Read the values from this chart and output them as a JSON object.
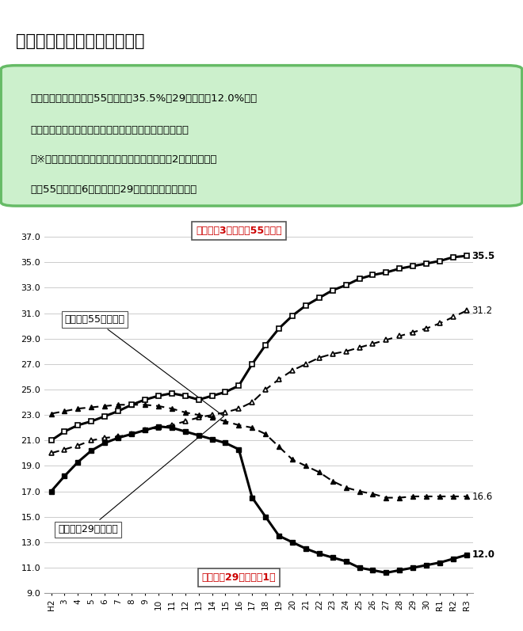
{
  "title": "建設業就業者の高齢化の進行",
  "note_line1": "〇　建設業就業者は、55歳以上が35.5%、29歳以下が12.0%と高",
  "note_line2": "　　齢化が進行し、次世代への技術承継が大きな課題。",
  "note_line3": "　※実数ベースでは、建設業就業者数のうち令和2年と比較して",
  "note_line4": "　　55歳以上が6万人減少（29歳以下は増減なし）。",
  "x_labels": [
    "H2",
    "3",
    "4",
    "5",
    "6",
    "7",
    "8",
    "9",
    "10",
    "11",
    "12",
    "13",
    "14",
    "15",
    "16",
    "17",
    "18",
    "19",
    "20",
    "21",
    "22",
    "23",
    "24",
    "25",
    "26",
    "27",
    "28",
    "29",
    "30",
    "R1",
    "R2",
    "R3"
  ],
  "ylim": [
    9.0,
    38.5
  ],
  "yticks": [
    9.0,
    11.0,
    13.0,
    15.0,
    17.0,
    19.0,
    21.0,
    23.0,
    25.0,
    27.0,
    29.0,
    31.0,
    33.0,
    35.0,
    37.0
  ],
  "construction_55": [
    21.0,
    21.7,
    22.2,
    22.5,
    22.9,
    23.3,
    23.8,
    24.2,
    24.5,
    24.7,
    24.5,
    24.2,
    24.5,
    24.8,
    25.3,
    27.0,
    28.5,
    29.8,
    30.8,
    31.6,
    32.2,
    32.8,
    33.2,
    33.7,
    34.0,
    34.2,
    34.5,
    34.7,
    34.9,
    35.1,
    35.4,
    35.5
  ],
  "all_industry_55": [
    20.0,
    20.3,
    20.6,
    21.0,
    21.2,
    21.3,
    21.5,
    21.8,
    22.0,
    22.2,
    22.5,
    22.8,
    23.0,
    23.2,
    23.5,
    24.0,
    25.0,
    25.8,
    26.5,
    27.0,
    27.5,
    27.8,
    28.0,
    28.3,
    28.6,
    28.9,
    29.2,
    29.5,
    29.8,
    30.2,
    30.7,
    31.2
  ],
  "construction_29": [
    17.0,
    18.2,
    19.3,
    20.2,
    20.8,
    21.2,
    21.5,
    21.8,
    22.1,
    22.0,
    21.7,
    21.4,
    21.1,
    20.8,
    20.3,
    16.5,
    15.0,
    13.5,
    13.0,
    12.5,
    12.1,
    11.8,
    11.5,
    11.0,
    10.8,
    10.6,
    10.8,
    11.0,
    11.2,
    11.4,
    11.7,
    12.0
  ],
  "all_industry_29": [
    23.1,
    23.3,
    23.5,
    23.6,
    23.7,
    23.8,
    23.8,
    23.8,
    23.7,
    23.5,
    23.2,
    23.0,
    22.8,
    22.5,
    22.2,
    22.0,
    21.5,
    20.5,
    19.5,
    19.0,
    18.5,
    17.8,
    17.3,
    17.0,
    16.8,
    16.5,
    16.5,
    16.6,
    16.6,
    16.6,
    16.6,
    16.6
  ],
  "bg_color": "#ffffff",
  "note_bg_color": "#ccf0cc",
  "note_border_color": "#66bb66",
  "red_text_color": "#cc0000",
  "grid_color": "#cccccc",
  "label_55_construction": "建設業：3割以上が55歳以上",
  "label_29_construction": "建設業：29歳以下は1割",
  "label_55_all": "全産業（55歳以上）",
  "label_29_all": "全産業（29歳以下）",
  "end_label_c55": "35.5",
  "end_label_a55": "31.2",
  "end_label_c29": "12.0",
  "end_label_a29": "16.6"
}
